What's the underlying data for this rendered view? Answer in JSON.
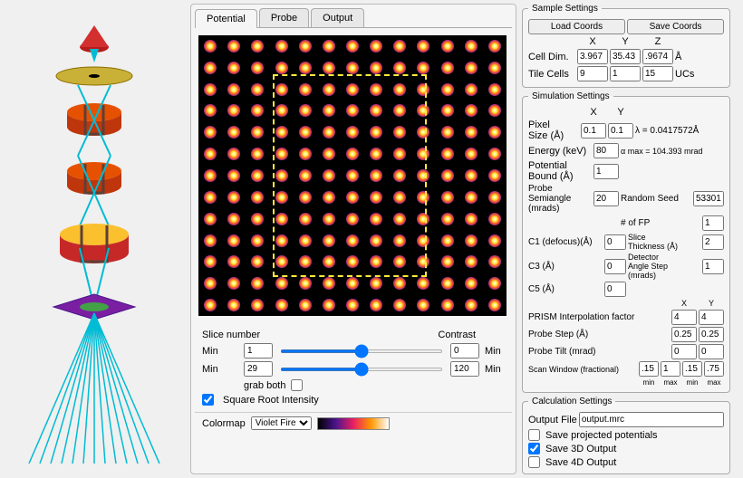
{
  "tabs": [
    "Potential",
    "Probe",
    "Output"
  ],
  "activeTab": 0,
  "viz": {
    "grid_n": 13,
    "probe_box": {
      "left_pct": 24,
      "top_pct": 14,
      "width_pct": 50,
      "height_pct": 72
    },
    "atom_gradient": [
      "#ffffff",
      "#ffeb3b",
      "#ff5722",
      "#7b1fa2",
      "#000000"
    ]
  },
  "sliders": {
    "slice_label": "Slice number",
    "contrast_label": "Contrast",
    "row1": {
      "label": "Min",
      "val": "1",
      "rmin": 1,
      "rmax": 30,
      "r": 1,
      "cval": "0",
      "clabel": "Min"
    },
    "row2": {
      "label": "Min",
      "val": "29",
      "rmin": 1,
      "rmax": 120,
      "r": 29,
      "cval": "120",
      "clabel": "Min"
    },
    "grab_label": "grab both",
    "sqrt_label": "Square Root Intensity",
    "sqrt_checked": true
  },
  "colormap": {
    "label": "Colormap",
    "selected": "Violet Fire"
  },
  "sample": {
    "legend": "Sample Settings",
    "load": "Load Coords",
    "save": "Save Coords",
    "cols": [
      "X",
      "Y",
      "Z"
    ],
    "celldim_label": "Cell Dim.",
    "celldim": [
      "3.967",
      "35.43",
      ".9674"
    ],
    "celldim_unit": "Å",
    "tile_label": "Tile Cells",
    "tile": [
      "9",
      "1",
      "15"
    ],
    "tile_unit": "UCs"
  },
  "sim": {
    "legend": "Simulation Settings",
    "colsXY": [
      "X",
      "Y"
    ],
    "pixel_label": "Pixel\nSize (Å)",
    "pixel": [
      "0.1",
      "0.1"
    ],
    "lambda": "λ = 0.0417572Å",
    "alpha": "α max = 104.393 mrad",
    "energy_label": "Energy (keV)",
    "energy": "80",
    "potbound_label": "Potential\nBound (Å)",
    "potbound": "1",
    "seed_label": "Random Seed",
    "seed": "53301",
    "semi_label": "Probe\nSemiangle\n(mrads)",
    "semi": "20",
    "fp_label": "# of FP",
    "fp": "1",
    "c1_label": "C1 (defocus)(Å)",
    "c1": "0",
    "slice_label": "Slice\nThickness (Å)",
    "slice": "2",
    "c3_label": "C3 (Å)",
    "c3": "0",
    "detang_label": "Detector\nAngle Step\n(mrads)",
    "detang": "1",
    "c5_label": "C5 (Å)",
    "c5": "0",
    "prism_label": "PRISM Interpolation factor",
    "prism": [
      "4",
      "4"
    ],
    "pstep_label": "Probe Step (Å)",
    "pstep": [
      "0.25",
      "0.25"
    ],
    "ptilt_label": "Probe Tilt (mrad)",
    "ptilt": [
      "0",
      "0"
    ],
    "scan_label": "Scan Window (fractional)",
    "scan": [
      ".15",
      "1",
      ".15",
      ".75"
    ],
    "scan_sub": [
      "min",
      "max",
      "min",
      "max"
    ]
  },
  "calc": {
    "legend": "Calculation Settings",
    "out_label": "Output File",
    "out": "output.mrc",
    "opts": [
      {
        "label": "Save projected potentials",
        "checked": false
      },
      {
        "label": "Save 3D Output",
        "checked": true
      },
      {
        "label": "Save 4D Output",
        "checked": false
      }
    ]
  }
}
